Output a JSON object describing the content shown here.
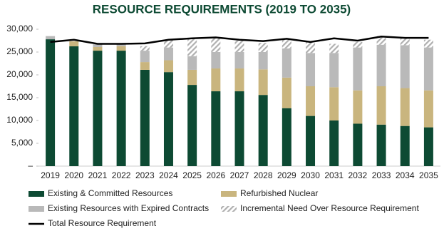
{
  "chart_data": {
    "type": "bar",
    "stacked": true,
    "title": "RESOURCE REQUIREMENTS (2019 TO 2035)",
    "categories": [
      "2019",
      "2020",
      "2021",
      "2022",
      "2023",
      "2024",
      "2025",
      "2026",
      "2027",
      "2028",
      "2029",
      "2030",
      "2031",
      "2032",
      "2033",
      "2034",
      "2035"
    ],
    "series": [
      {
        "name": "Existing & Committed Resources",
        "color": "#0d4a33",
        "values": [
          27800,
          26250,
          25300,
          25300,
          21100,
          20600,
          17800,
          16400,
          16400,
          15600,
          12700,
          11000,
          10000,
          9300,
          9100,
          8800,
          8500
        ]
      },
      {
        "name": "Refurbished Nuclear",
        "color": "#c9b57e",
        "values": [
          0,
          1100,
          800,
          1000,
          1700,
          2600,
          3300,
          5000,
          5000,
          5600,
          6700,
          6500,
          7300,
          7300,
          8400,
          8300,
          8100
        ]
      },
      {
        "name": "Existing Resources with Expired Contracts",
        "color": "#b9b9b9",
        "values": [
          700,
          0,
          600,
          400,
          2500,
          2800,
          3000,
          3600,
          3600,
          3800,
          6400,
          7300,
          7500,
          9400,
          9100,
          9400,
          9400
        ]
      },
      {
        "name": "Incremental Need Over Resource Requirement",
        "color": "#b0b0b0",
        "pattern": "hatch",
        "values": [
          0,
          0,
          0,
          0,
          1000,
          1600,
          3800,
          3100,
          2500,
          2000,
          1900,
          2400,
          2000,
          1200,
          1900,
          1600,
          1700
        ]
      },
      {
        "name": "Total Resource Requirement",
        "type": "line",
        "color": "#000000",
        "values": [
          27200,
          27700,
          26800,
          26800,
          26900,
          27700,
          28000,
          28200,
          27700,
          27400,
          27900,
          27200,
          28000,
          27500,
          28400,
          28100,
          28100
        ]
      }
    ],
    "ylim": [
      0,
      30000
    ],
    "yticks": [
      {
        "value": 0,
        "label": "–"
      },
      {
        "value": 5000,
        "label": "5,000"
      },
      {
        "value": 10000,
        "label": "10,000"
      },
      {
        "value": 15000,
        "label": "15,000"
      },
      {
        "value": 20000,
        "label": "20,000"
      },
      {
        "value": 25000,
        "label": "25,000"
      },
      {
        "value": 30000,
        "label": "30,000"
      }
    ],
    "grid": false
  }
}
